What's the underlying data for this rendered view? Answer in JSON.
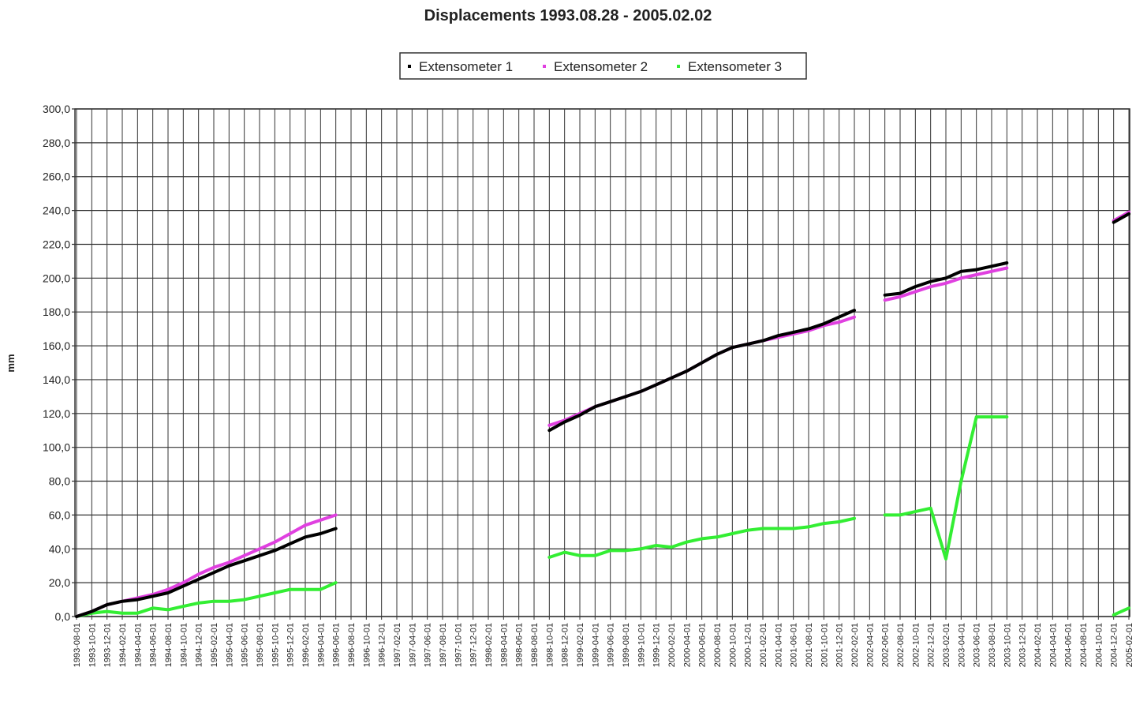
{
  "chart_data": {
    "type": "line",
    "title": "Displacements 1993.08.28 - 2005.02.02",
    "y_label": "mm",
    "categories": [
      "1993-08-01",
      "1993-10-01",
      "1993-12-01",
      "1994-02-01",
      "1994-04-01",
      "1994-06-01",
      "1994-08-01",
      "1994-10-01",
      "1994-12-01",
      "1995-02-01",
      "1995-04-01",
      "1995-06-01",
      "1995-08-01",
      "1995-10-01",
      "1995-12-01",
      "1996-02-01",
      "1996-04-01",
      "1996-06-01",
      "1996-08-01",
      "1996-10-01",
      "1996-12-01",
      "1997-02-01",
      "1997-04-01",
      "1997-06-01",
      "1997-08-01",
      "1997-10-01",
      "1997-12-01",
      "1998-02-01",
      "1998-04-01",
      "1998-06-01",
      "1998-08-01",
      "1998-10-01",
      "1998-12-01",
      "1999-02-01",
      "1999-04-01",
      "1999-06-01",
      "1999-08-01",
      "1999-10-01",
      "1999-12-01",
      "2000-02-01",
      "2000-04-01",
      "2000-06-01",
      "2000-08-01",
      "2000-10-01",
      "2000-12-01",
      "2001-02-01",
      "2001-04-01",
      "2001-06-01",
      "2001-08-01",
      "2001-10-01",
      "2001-12-01",
      "2002-02-01",
      "2002-04-01",
      "2002-06-01",
      "2002-08-01",
      "2002-10-01",
      "2002-12-01",
      "2003-02-01",
      "2003-04-01",
      "2003-06-01",
      "2003-08-01",
      "2003-10-01",
      "2003-12-01",
      "2004-02-01",
      "2004-04-01",
      "2004-06-01",
      "2004-08-01",
      "2004-10-01",
      "2004-12-01",
      "2005-02-01"
    ],
    "series": [
      {
        "name": "Extensometer 1",
        "color": "#000000",
        "values": [
          0,
          3,
          7,
          9,
          10,
          12,
          14,
          18,
          22,
          26,
          30,
          33,
          36,
          39,
          43,
          47,
          49,
          52,
          null,
          null,
          null,
          null,
          null,
          null,
          null,
          null,
          null,
          null,
          null,
          null,
          null,
          110,
          115,
          119,
          124,
          127,
          130,
          133,
          137,
          141,
          145,
          150,
          155,
          159,
          161,
          163,
          166,
          168,
          170,
          173,
          177,
          181,
          null,
          190,
          191,
          195,
          198,
          200,
          204,
          205,
          207,
          209,
          null,
          null,
          null,
          null,
          null,
          null,
          233,
          238
        ]
      },
      {
        "name": "Extensometer 2",
        "color": "#e040e0",
        "values": [
          0,
          3,
          7,
          9,
          11,
          13,
          16,
          20,
          25,
          29,
          32,
          36,
          40,
          44,
          49,
          54,
          57,
          60,
          null,
          null,
          null,
          null,
          null,
          null,
          null,
          null,
          null,
          null,
          null,
          null,
          null,
          113,
          116,
          120,
          124,
          127,
          130,
          133,
          137,
          141,
          145,
          150,
          155,
          159,
          161,
          163,
          165,
          167,
          169,
          172,
          174,
          177,
          null,
          187,
          189,
          192,
          195,
          197,
          200,
          202,
          204,
          206,
          null,
          null,
          null,
          null,
          null,
          null,
          234,
          239
        ]
      },
      {
        "name": "Extensometer 3",
        "color": "#33ee33",
        "values": [
          0,
          2,
          3,
          2,
          2,
          5,
          4,
          6,
          8,
          9,
          9,
          10,
          12,
          14,
          16,
          16,
          16,
          20,
          null,
          null,
          null,
          null,
          null,
          null,
          null,
          null,
          null,
          null,
          null,
          null,
          null,
          35,
          38,
          36,
          36,
          39,
          39,
          40,
          42,
          41,
          44,
          46,
          47,
          49,
          51,
          52,
          52,
          52,
          53,
          55,
          56,
          58,
          null,
          60,
          60,
          62,
          64,
          34,
          80,
          118,
          118,
          118,
          null,
          null,
          null,
          null,
          null,
          null,
          1,
          5
        ]
      }
    ],
    "ylim": [
      0,
      300
    ],
    "yticks": [
      {
        "value": 0,
        "label": "0,0"
      },
      {
        "value": 20,
        "label": "20,0"
      },
      {
        "value": 40,
        "label": "40,0"
      },
      {
        "value": 60,
        "label": "60,0"
      },
      {
        "value": 80,
        "label": "80,0"
      },
      {
        "value": 100,
        "label": "100,0"
      },
      {
        "value": 120,
        "label": "120,0"
      },
      {
        "value": 140,
        "label": "140,0"
      },
      {
        "value": 160,
        "label": "160,0"
      },
      {
        "value": 180,
        "label": "180,0"
      },
      {
        "value": 200,
        "label": "200,0"
      },
      {
        "value": 220,
        "label": "220,0"
      },
      {
        "value": 240,
        "label": "240,0"
      },
      {
        "value": 260,
        "label": "260,0"
      },
      {
        "value": 280,
        "label": "280,0"
      },
      {
        "value": 300,
        "label": "300,0"
      }
    ],
    "grid": true,
    "legend": "top"
  }
}
